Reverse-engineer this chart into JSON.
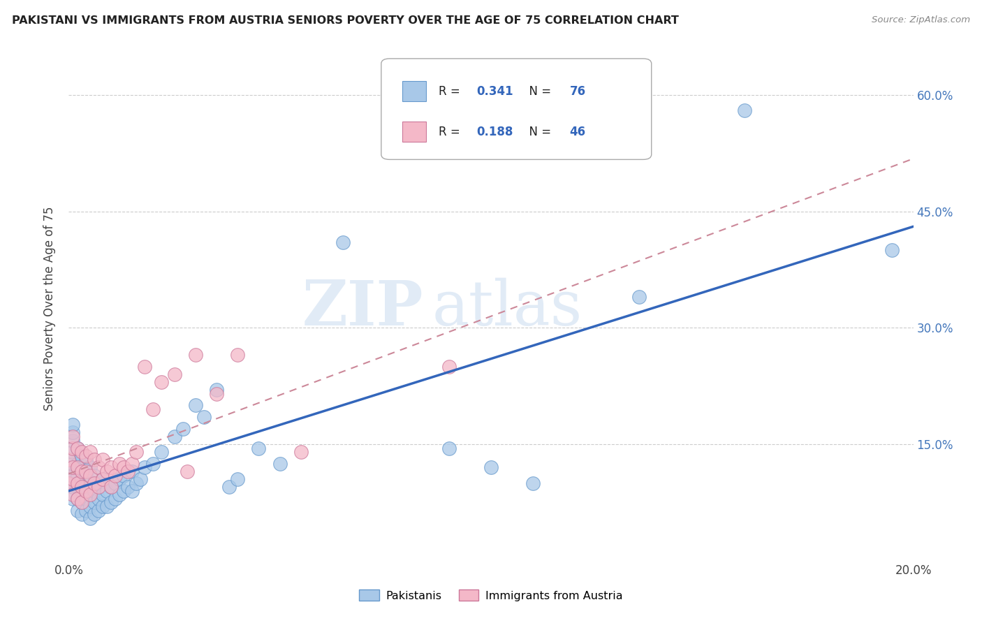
{
  "title": "PAKISTANI VS IMMIGRANTS FROM AUSTRIA SENIORS POVERTY OVER THE AGE OF 75 CORRELATION CHART",
  "source": "Source: ZipAtlas.com",
  "ylabel": "Seniors Poverty Over the Age of 75",
  "xmin": 0.0,
  "xmax": 0.2,
  "ymin": 0.0,
  "ymax": 0.65,
  "yticks": [
    0.0,
    0.15,
    0.3,
    0.45,
    0.6
  ],
  "right_ytick_labels": [
    "",
    "15.0%",
    "30.0%",
    "45.0%",
    "60.0%"
  ],
  "xticks": [
    0.0,
    0.05,
    0.1,
    0.15,
    0.2
  ],
  "xtick_labels": [
    "0.0%",
    "",
    "",
    "",
    "20.0%"
  ],
  "R_pakistani": 0.341,
  "N_pakistani": 76,
  "R_austria": 0.188,
  "N_austria": 46,
  "color_pakistani": "#A8C8E8",
  "color_austria": "#F4B8C8",
  "edge_pakistani": "#6699CC",
  "edge_austria": "#CC7799",
  "trend_color_pakistani": "#3366BB",
  "trend_color_austria": "#CC8899",
  "watermark_zip": "ZIP",
  "watermark_atlas": "atlas",
  "pakistani_x": [
    0.0,
    0.0,
    0.001,
    0.001,
    0.001,
    0.001,
    0.001,
    0.001,
    0.001,
    0.001,
    0.002,
    0.002,
    0.002,
    0.002,
    0.002,
    0.002,
    0.003,
    0.003,
    0.003,
    0.003,
    0.003,
    0.003,
    0.004,
    0.004,
    0.004,
    0.004,
    0.004,
    0.005,
    0.005,
    0.005,
    0.005,
    0.005,
    0.006,
    0.006,
    0.006,
    0.006,
    0.007,
    0.007,
    0.007,
    0.008,
    0.008,
    0.008,
    0.009,
    0.009,
    0.01,
    0.01,
    0.011,
    0.011,
    0.012,
    0.012,
    0.013,
    0.013,
    0.014,
    0.015,
    0.015,
    0.016,
    0.017,
    0.018,
    0.02,
    0.022,
    0.025,
    0.027,
    0.03,
    0.032,
    0.035,
    0.038,
    0.04,
    0.045,
    0.05,
    0.065,
    0.09,
    0.1,
    0.11,
    0.135,
    0.16,
    0.195
  ],
  "pakistani_y": [
    0.1,
    0.12,
    0.08,
    0.095,
    0.11,
    0.125,
    0.14,
    0.155,
    0.165,
    0.175,
    0.065,
    0.08,
    0.095,
    0.11,
    0.125,
    0.145,
    0.06,
    0.075,
    0.09,
    0.105,
    0.12,
    0.135,
    0.065,
    0.08,
    0.095,
    0.11,
    0.13,
    0.055,
    0.07,
    0.085,
    0.1,
    0.12,
    0.06,
    0.075,
    0.09,
    0.11,
    0.065,
    0.08,
    0.1,
    0.07,
    0.085,
    0.105,
    0.07,
    0.09,
    0.075,
    0.095,
    0.08,
    0.1,
    0.085,
    0.105,
    0.09,
    0.11,
    0.095,
    0.09,
    0.115,
    0.1,
    0.105,
    0.12,
    0.125,
    0.14,
    0.16,
    0.17,
    0.2,
    0.185,
    0.22,
    0.095,
    0.105,
    0.145,
    0.125,
    0.41,
    0.145,
    0.12,
    0.1,
    0.34,
    0.58,
    0.4
  ],
  "austria_x": [
    0.0,
    0.0,
    0.001,
    0.001,
    0.001,
    0.001,
    0.001,
    0.002,
    0.002,
    0.002,
    0.002,
    0.003,
    0.003,
    0.003,
    0.003,
    0.004,
    0.004,
    0.004,
    0.005,
    0.005,
    0.005,
    0.006,
    0.006,
    0.007,
    0.007,
    0.008,
    0.008,
    0.009,
    0.01,
    0.01,
    0.011,
    0.012,
    0.013,
    0.014,
    0.015,
    0.016,
    0.018,
    0.02,
    0.022,
    0.025,
    0.028,
    0.03,
    0.035,
    0.04,
    0.055,
    0.09
  ],
  "austria_y": [
    0.1,
    0.13,
    0.085,
    0.105,
    0.12,
    0.145,
    0.16,
    0.08,
    0.1,
    0.12,
    0.145,
    0.075,
    0.095,
    0.115,
    0.14,
    0.09,
    0.115,
    0.135,
    0.085,
    0.11,
    0.14,
    0.1,
    0.13,
    0.095,
    0.12,
    0.105,
    0.13,
    0.115,
    0.095,
    0.12,
    0.11,
    0.125,
    0.12,
    0.115,
    0.125,
    0.14,
    0.25,
    0.195,
    0.23,
    0.24,
    0.115,
    0.265,
    0.215,
    0.265,
    0.14,
    0.25
  ]
}
